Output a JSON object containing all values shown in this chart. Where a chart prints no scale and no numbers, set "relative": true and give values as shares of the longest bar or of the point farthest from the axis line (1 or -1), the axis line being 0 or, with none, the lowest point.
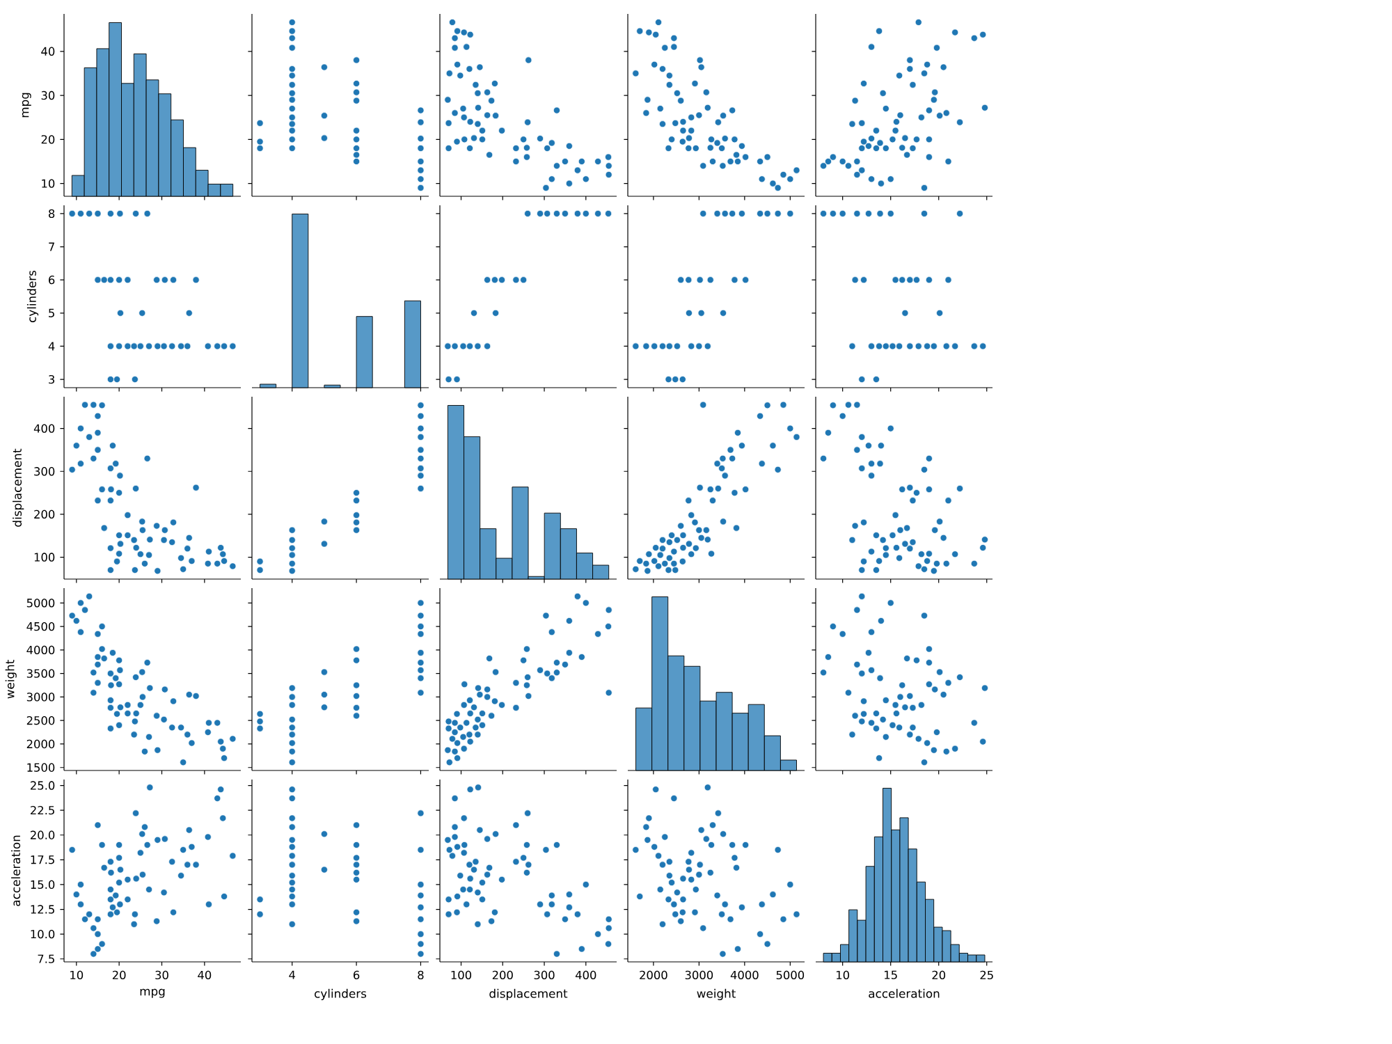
{
  "chart_data": [
    {
      "type": "bar",
      "relative": true,
      "color": "#5799c7",
      "x": [
        10.4,
        13.3,
        16.2,
        19.1,
        22,
        24.9,
        27.8,
        30.7,
        33.6,
        36.5,
        39.4,
        42.3,
        45.2
      ],
      "values": [
        0.12,
        0.74,
        0.85,
        1,
        0.65,
        0.82,
        0.67,
        0.59,
        0.44,
        0.28,
        0.15,
        0.07,
        0.07
      ],
      "xlim": [
        7.1,
        48.5
      ],
      "xticks": [
        10,
        20,
        30,
        40
      ],
      "y2label": "mpg",
      "y2lim": [
        7.1,
        48.5
      ],
      "y2ticks": [
        10,
        20,
        30,
        40
      ],
      "tick_labels": "y"
    },
    {
      "type": "scatter",
      "color": "#1f77b4",
      "marker": "circle",
      "x": [
        8,
        8,
        8,
        8,
        8,
        8,
        8,
        8,
        6,
        6,
        6,
        6,
        6,
        6,
        6,
        6,
        6,
        5,
        5,
        5,
        3,
        3,
        3,
        4,
        4,
        4,
        4,
        4,
        4,
        4,
        4,
        4,
        4,
        4,
        4,
        4,
        4,
        4
      ],
      "values": [
        18,
        15,
        9,
        11,
        13,
        23.9,
        26.6,
        20.2,
        22,
        18,
        38,
        20,
        15,
        30.7,
        28.8,
        32.7,
        16.5,
        20.3,
        25.4,
        36.4,
        18,
        19.5,
        23.7,
        27,
        25,
        46.6,
        43,
        44.6,
        32.4,
        34.5,
        40.8,
        29,
        20,
        30.5,
        36,
        22,
        18,
        23.5
      ],
      "xlim": [
        2.75,
        8.25
      ],
      "xticks": [
        4,
        6,
        8
      ],
      "ylim": [
        7.1,
        48.5
      ],
      "yticks": [
        10,
        20,
        30,
        40
      ],
      "tick_labels": false
    },
    {
      "type": "scatter",
      "color": "#1f77b4",
      "marker": "circle",
      "x": [
        307,
        350,
        429,
        454,
        390,
        330,
        455,
        360,
        304,
        400,
        455,
        380,
        260,
        330,
        318,
        360,
        290,
        318,
        198,
        232,
        262,
        250,
        232,
        163,
        173,
        181,
        168,
        258,
        258,
        131,
        183,
        145,
        70,
        90,
        70,
        122,
        105,
        85,
        107,
        79,
        107,
        122,
        85,
        91,
        141,
        72,
        135,
        98,
        91,
        85,
        68,
        151,
        163,
        140,
        108,
        120,
        151,
        113,
        121,
        140
      ],
      "values": [
        18,
        15,
        15,
        16,
        15,
        14,
        14,
        10,
        9,
        11,
        12,
        13,
        23.9,
        26.6,
        19.2,
        18.5,
        20.2,
        11,
        22,
        18,
        38,
        20,
        15,
        30.7,
        28.8,
        32.7,
        16.5,
        18.1,
        16,
        20.3,
        25.4,
        36.4,
        18,
        19.5,
        23.7,
        24,
        27,
        26,
        25,
        46.6,
        44.3,
        43.8,
        43,
        44.6,
        27.2,
        35,
        32.4,
        34.5,
        37,
        40.8,
        29,
        20,
        25.5,
        30.5,
        20,
        36,
        22,
        41,
        18,
        23.5
      ],
      "xlim": [
        49,
        474
      ],
      "xticks": [
        100,
        200,
        300,
        400
      ],
      "ylim": [
        7.1,
        48.5
      ],
      "yticks": [
        10,
        20,
        30,
        40
      ],
      "tick_labels": false
    },
    {
      "type": "scatter",
      "color": "#1f77b4",
      "marker": "circle",
      "x": [
        3500,
        3690,
        4340,
        4500,
        3850,
        3520,
        3090,
        4620,
        4730,
        5000,
        4850,
        5140,
        3420,
        3730,
        3400,
        3940,
        3570,
        4380,
        2830,
        2770,
        3020,
        3780,
        3300,
        3160,
        2600,
        2910,
        3820,
        3250,
        4020,
        2780,
        3530,
        3050,
        2330,
        2640,
        2480,
        2650,
        2150,
        1840,
        2830,
        2110,
        1900,
        2050,
        2450,
        1700,
        3190,
        1610,
        2350,
        2350,
        2020,
        2250,
        1870,
        2400,
        3000,
        2520,
        3270,
        2200,
        2650,
        2450,
        2930,
        2200
      ],
      "values": [
        18,
        15,
        15,
        16,
        15,
        14,
        14,
        10,
        9,
        11,
        12,
        13,
        23.9,
        26.6,
        19.2,
        18.5,
        20.2,
        11,
        22,
        18,
        38,
        20,
        15,
        30.7,
        28.8,
        32.7,
        16.5,
        18.1,
        16,
        20.3,
        25.4,
        36.4,
        18,
        19.5,
        23.7,
        24,
        27,
        26,
        25,
        46.6,
        44.3,
        43.8,
        43,
        44.6,
        27.2,
        35,
        32.4,
        34.5,
        37,
        40.8,
        29,
        20,
        25.5,
        30.5,
        20,
        36,
        22,
        41,
        18,
        23.5
      ],
      "xlim": [
        1437,
        5316
      ],
      "xticks": [
        2000,
        3000,
        4000,
        5000
      ],
      "ylim": [
        7.1,
        48.5
      ],
      "yticks": [
        10,
        20,
        30,
        40
      ],
      "tick_labels": false
    },
    {
      "type": "scatter",
      "color": "#1f77b4",
      "marker": "circle",
      "x": [
        12,
        11.5,
        10,
        9,
        8.5,
        8,
        10.6,
        14,
        18.5,
        15,
        11.5,
        12,
        22.2,
        19,
        13.9,
        12.7,
        13,
        13,
        15.5,
        17.3,
        17,
        17.7,
        21,
        19.6,
        11.3,
        12.2,
        16.7,
        16.2,
        19,
        16.5,
        20.1,
        20.5,
        13.5,
        12.2,
        12,
        15.6,
        14.5,
        20.8,
        18.2,
        17.9,
        21.7,
        24.6,
        23.7,
        13.8,
        24.8,
        18.5,
        17.3,
        15.9,
        18.8,
        19.8,
        19.5,
        15.2,
        16,
        14.2,
        19,
        17,
        13.5,
        13,
        14.5,
        11
      ],
      "values": [
        18,
        15,
        15,
        16,
        15,
        14,
        14,
        10,
        9,
        11,
        12,
        13,
        23.9,
        26.6,
        19.2,
        18.5,
        20.2,
        11,
        22,
        18,
        38,
        20,
        15,
        30.7,
        28.8,
        32.7,
        16.5,
        18.1,
        16,
        20.3,
        25.4,
        36.4,
        18,
        19.5,
        23.7,
        24,
        27,
        26,
        25,
        46.6,
        44.3,
        43.8,
        43,
        44.6,
        27.2,
        35,
        32.4,
        34.5,
        37,
        40.8,
        29,
        20,
        25.5,
        30.5,
        20,
        36,
        22,
        41,
        18,
        23.5
      ],
      "xlim": [
        7.2,
        25.6
      ],
      "xticks": [
        10,
        15,
        20,
        25
      ],
      "ylim": [
        7.1,
        48.5
      ],
      "yticks": [
        10,
        20,
        30,
        40
      ],
      "tick_labels": false
    },
    {
      "type": "scatter",
      "color": "#1f77b4",
      "marker": "circle",
      "ylabel": "cylinders",
      "x": [
        18,
        15,
        9,
        11,
        13,
        23.9,
        26.6,
        20.2,
        22,
        18,
        38,
        20,
        15,
        30.7,
        28.8,
        32.7,
        16.5,
        20.3,
        25.4,
        36.4,
        18,
        19.5,
        23.7,
        27,
        25,
        46.6,
        43,
        44.6,
        32.4,
        34.5,
        40.8,
        29,
        20,
        30.5,
        36,
        22,
        18,
        23.5
      ],
      "values": [
        8,
        8,
        8,
        8,
        8,
        8,
        8,
        8,
        6,
        6,
        6,
        6,
        6,
        6,
        6,
        6,
        6,
        5,
        5,
        5,
        3,
        3,
        3,
        4,
        4,
        4,
        4,
        4,
        4,
        4,
        4,
        4,
        4,
        4,
        4,
        4,
        4,
        4
      ],
      "xlim": [
        7.1,
        48.5
      ],
      "xticks": [
        10,
        20,
        30,
        40
      ],
      "ylim": [
        2.75,
        8.25
      ],
      "yticks": [
        3,
        4,
        5,
        6,
        7,
        8
      ],
      "tick_labels": "y"
    },
    {
      "type": "bar",
      "relative": true,
      "color": "#5799c7",
      "x": [
        3.25,
        3.75,
        4.25,
        4.75,
        5.25,
        5.75,
        6.25,
        6.75,
        7.25,
        7.75
      ],
      "values": [
        0.02,
        0,
        1,
        0,
        0.015,
        0,
        0.41,
        0,
        0,
        0.5
      ],
      "xlim": [
        2.75,
        8.25
      ],
      "xticks": [
        4,
        6,
        8
      ],
      "tick_labels": false
    },
    {
      "type": "scatter",
      "color": "#1f77b4",
      "marker": "circle",
      "x": [
        307,
        350,
        429,
        454,
        330,
        400,
        380,
        260,
        290,
        198,
        232,
        250,
        163,
        181,
        131,
        183,
        70,
        90,
        105,
        85,
        68,
        163,
        140,
        121
      ],
      "values": [
        8,
        8,
        8,
        8,
        8,
        8,
        8,
        8,
        8,
        6,
        6,
        6,
        6,
        6,
        5,
        5,
        3,
        3,
        4,
        4,
        4,
        4,
        4,
        4
      ],
      "xlim": [
        49,
        474
      ],
      "xticks": [
        100,
        200,
        300,
        400
      ],
      "ylim": [
        2.75,
        8.25
      ],
      "yticks": [
        3,
        4,
        5,
        6,
        7,
        8
      ],
      "tick_labels": false
    },
    {
      "type": "scatter",
      "color": "#1f77b4",
      "marker": "circle",
      "x": [
        4340,
        4500,
        3090,
        4730,
        5000,
        3730,
        3400,
        3940,
        3570,
        2770,
        3020,
        3780,
        2600,
        3250,
        4020,
        2780,
        3530,
        3050,
        2330,
        2640,
        2480,
        1840,
        2830,
        3190,
        1610,
        2350,
        2020,
        3000,
        2520,
        2200
      ],
      "values": [
        8,
        8,
        8,
        8,
        8,
        8,
        8,
        8,
        8,
        6,
        6,
        6,
        6,
        6,
        6,
        5,
        5,
        5,
        3,
        3,
        3,
        4,
        4,
        4,
        4,
        4,
        4,
        4,
        4,
        4
      ],
      "xlim": [
        1437,
        5316
      ],
      "xticks": [
        2000,
        3000,
        4000,
        5000
      ],
      "ylim": [
        2.75,
        8.25
      ],
      "yticks": [
        3,
        4,
        5,
        6,
        7,
        8
      ],
      "tick_labels": false
    },
    {
      "type": "scatter",
      "color": "#1f77b4",
      "marker": "circle",
      "x": [
        11.5,
        10,
        9,
        8,
        18.5,
        15,
        22.2,
        13.9,
        12.7,
        15.5,
        17,
        17.7,
        21,
        11.3,
        12.2,
        16.2,
        19,
        16.5,
        20.1,
        13.5,
        12,
        14.5,
        20.8,
        17.9,
        21.7,
        24.6,
        23.7,
        13.8,
        15.9,
        18.8,
        19.5,
        15.2,
        17,
        13,
        11
      ],
      "values": [
        8,
        8,
        8,
        8,
        8,
        8,
        8,
        8,
        8,
        6,
        6,
        6,
        6,
        6,
        6,
        6,
        6,
        5,
        5,
        3,
        3,
        4,
        4,
        4,
        4,
        4,
        4,
        4,
        4,
        4,
        4,
        4,
        4,
        4,
        4
      ],
      "xlim": [
        7.2,
        25.6
      ],
      "xticks": [
        10,
        15,
        20,
        25
      ],
      "ylim": [
        2.75,
        8.25
      ],
      "yticks": [
        3,
        4,
        5,
        6,
        7,
        8
      ],
      "tick_labels": false
    },
    {
      "type": "scatter",
      "color": "#1f77b4",
      "marker": "circle",
      "ylabel": "displacement",
      "x": [
        18,
        15,
        15,
        16,
        15,
        14,
        14,
        10,
        9,
        11,
        12,
        13,
        23.9,
        26.6,
        19.2,
        18.5,
        20.2,
        11,
        22,
        18,
        38,
        20,
        15,
        30.7,
        28.8,
        32.7,
        16.5,
        18.1,
        16,
        20.3,
        25.4,
        36.4,
        18,
        19.5,
        23.7,
        24,
        27,
        26,
        25,
        46.6,
        44.3,
        43.8,
        43,
        44.6,
        27.2,
        35,
        32.4,
        34.5,
        37,
        40.8,
        29,
        20,
        25.5,
        30.5,
        20,
        36,
        22,
        41,
        18,
        23.5
      ],
      "values": [
        307,
        350,
        429,
        454,
        390,
        330,
        455,
        360,
        304,
        400,
        455,
        380,
        260,
        330,
        318,
        360,
        290,
        318,
        198,
        232,
        262,
        250,
        232,
        163,
        173,
        181,
        168,
        258,
        258,
        131,
        183,
        145,
        70,
        90,
        70,
        122,
        105,
        85,
        107,
        79,
        107,
        122,
        85,
        91,
        141,
        72,
        135,
        98,
        91,
        85,
        68,
        151,
        163,
        140,
        108,
        120,
        151,
        113,
        121,
        140
      ],
      "xlim": [
        7.1,
        48.5
      ],
      "xticks": [
        10,
        20,
        30,
        40
      ],
      "ylim": [
        49,
        474
      ],
      "yticks": [
        100,
        200,
        300,
        400
      ],
      "tick_labels": "y"
    },
    {
      "type": "scatter",
      "color": "#1f77b4",
      "marker": "circle",
      "x": [
        8,
        8,
        8,
        8,
        8,
        8,
        8,
        8,
        8,
        6,
        6,
        6,
        6,
        6,
        5,
        5,
        3,
        3,
        4,
        4,
        4,
        4,
        4,
        4
      ],
      "values": [
        307,
        350,
        429,
        454,
        330,
        400,
        380,
        260,
        290,
        198,
        232,
        250,
        163,
        181,
        131,
        183,
        70,
        90,
        105,
        85,
        68,
        163,
        140,
        121
      ],
      "xlim": [
        2.75,
        8.25
      ],
      "xticks": [
        4,
        6,
        8
      ],
      "ylim": [
        49,
        474
      ],
      "yticks": [
        100,
        200,
        300,
        400
      ],
      "tick_labels": false
    },
    {
      "type": "bar",
      "relative": true,
      "color": "#5799c7",
      "x": [
        87.4,
        126.1,
        164.8,
        203.5,
        242.2,
        280.9,
        319.6,
        358.3,
        397,
        435.7
      ],
      "values": [
        1,
        0.82,
        0.29,
        0.12,
        0.53,
        0.015,
        0.38,
        0.29,
        0.15,
        0.08
      ],
      "xlim": [
        49,
        474
      ],
      "xticks": [
        100,
        200,
        300,
        400
      ],
      "tick_labels": false
    },
    {
      "type": "scatter",
      "color": "#1f77b4",
      "marker": "circle",
      "x": [
        3500,
        3690,
        4340,
        4500,
        3850,
        3520,
        3090,
        4620,
        4730,
        5000,
        4850,
        5140,
        3420,
        3730,
        3400,
        3940,
        3570,
        4380,
        2830,
        2770,
        3020,
        3780,
        3300,
        3160,
        2600,
        2910,
        3820,
        3250,
        4020,
        2780,
        3530,
        3050,
        2330,
        2640,
        2480,
        2650,
        2150,
        1840,
        2830,
        2110,
        1900,
        2050,
        2450,
        1700,
        3190,
        1610,
        2350,
        2350,
        2020,
        2250,
        1870,
        2400,
        3000,
        2520,
        3270,
        2200,
        2650,
        2450,
        2930,
        2200
      ],
      "values": [
        307,
        350,
        429,
        454,
        390,
        330,
        455,
        360,
        304,
        400,
        455,
        380,
        260,
        330,
        318,
        360,
        290,
        318,
        198,
        232,
        262,
        250,
        232,
        163,
        173,
        181,
        168,
        258,
        258,
        131,
        183,
        145,
        70,
        90,
        70,
        122,
        105,
        85,
        107,
        79,
        107,
        122,
        85,
        91,
        141,
        72,
        135,
        98,
        91,
        85,
        68,
        151,
        163,
        140,
        108,
        120,
        151,
        113,
        121,
        140
      ],
      "xlim": [
        1437,
        5316
      ],
      "xticks": [
        2000,
        3000,
        4000,
        5000
      ],
      "ylim": [
        49,
        474
      ],
      "yticks": [
        100,
        200,
        300,
        400
      ],
      "tick_labels": false
    },
    {
      "type": "scatter",
      "color": "#1f77b4",
      "marker": "circle",
      "x": [
        12,
        11.5,
        10,
        9,
        8.5,
        8,
        10.6,
        14,
        18.5,
        15,
        11.5,
        12,
        22.2,
        19,
        13.9,
        12.7,
        13,
        13,
        15.5,
        17.3,
        17,
        17.7,
        21,
        19.6,
        11.3,
        12.2,
        16.7,
        16.2,
        19,
        16.5,
        20.1,
        20.5,
        13.5,
        12.2,
        12,
        15.6,
        14.5,
        20.8,
        18.2,
        17.9,
        21.7,
        24.6,
        23.7,
        13.8,
        24.8,
        18.5,
        17.3,
        15.9,
        18.8,
        19.8,
        19.5,
        15.2,
        16,
        14.2,
        19,
        17,
        13.5,
        13,
        14.5,
        11
      ],
      "values": [
        307,
        350,
        429,
        454,
        390,
        330,
        455,
        360,
        304,
        400,
        455,
        380,
        260,
        330,
        318,
        360,
        290,
        318,
        198,
        232,
        262,
        250,
        232,
        163,
        173,
        181,
        168,
        258,
        258,
        131,
        183,
        145,
        70,
        90,
        70,
        122,
        105,
        85,
        107,
        79,
        107,
        122,
        85,
        91,
        141,
        72,
        135,
        98,
        91,
        85,
        68,
        151,
        163,
        140,
        108,
        120,
        151,
        113,
        121,
        140
      ],
      "xlim": [
        7.2,
        25.6
      ],
      "xticks": [
        10,
        15,
        20,
        25
      ],
      "ylim": [
        49,
        474
      ],
      "yticks": [
        100,
        200,
        300,
        400
      ],
      "tick_labels": false
    },
    {
      "type": "scatter",
      "color": "#1f77b4",
      "marker": "circle",
      "ylabel": "weight",
      "x": [
        18,
        15,
        15,
        16,
        15,
        14,
        14,
        10,
        9,
        11,
        12,
        13,
        23.9,
        26.6,
        19.2,
        18.5,
        20.2,
        11,
        22,
        18,
        38,
        20,
        15,
        30.7,
        28.8,
        32.7,
        16.5,
        18.1,
        16,
        20.3,
        25.4,
        36.4,
        18,
        19.5,
        23.7,
        24,
        27,
        26,
        25,
        46.6,
        44.3,
        43.8,
        43,
        44.6,
        27.2,
        35,
        32.4,
        34.5,
        37,
        40.8,
        29,
        20,
        25.5,
        30.5,
        20,
        36,
        22,
        41,
        18,
        23.5
      ],
      "values": [
        3500,
        3690,
        4340,
        4500,
        3850,
        3520,
        3090,
        4620,
        4730,
        5000,
        4850,
        5140,
        3420,
        3730,
        3400,
        3940,
        3570,
        4380,
        2830,
        2770,
        3020,
        3780,
        3300,
        3160,
        2600,
        2910,
        3820,
        3250,
        4020,
        2780,
        3530,
        3050,
        2330,
        2640,
        2480,
        2650,
        2150,
        1840,
        2830,
        2110,
        1900,
        2050,
        2450,
        1700,
        3190,
        1610,
        2350,
        2350,
        2020,
        2250,
        1870,
        2400,
        3000,
        2520,
        3270,
        2200,
        2650,
        2450,
        2930,
        2200
      ],
      "xlim": [
        7.1,
        48.5
      ],
      "xticks": [
        10,
        20,
        30,
        40
      ],
      "ylim": [
        1437,
        5316
      ],
      "yticks": [
        1500,
        2000,
        2500,
        3000,
        3500,
        4000,
        4500,
        5000
      ],
      "tick_labels": "y"
    },
    {
      "type": "scatter",
      "color": "#1f77b4",
      "marker": "circle",
      "x": [
        8,
        8,
        8,
        8,
        8,
        8,
        8,
        8,
        8,
        6,
        6,
        6,
        6,
        6,
        6,
        5,
        5,
        5,
        3,
        3,
        3,
        4,
        4,
        4,
        4,
        4,
        4,
        4,
        4,
        4
      ],
      "values": [
        4340,
        4500,
        3090,
        4730,
        5000,
        3730,
        3400,
        3940,
        3570,
        2770,
        3020,
        3780,
        2600,
        3250,
        4020,
        2780,
        3530,
        3050,
        2330,
        2640,
        2480,
        1840,
        2830,
        3190,
        1610,
        2350,
        2020,
        3000,
        2520,
        2200
      ],
      "xlim": [
        2.75,
        8.25
      ],
      "xticks": [
        4,
        6,
        8
      ],
      "ylim": [
        1437,
        5316
      ],
      "yticks": [
        1500,
        2000,
        2500,
        3000,
        3500,
        4000,
        4500,
        5000
      ],
      "tick_labels": false
    },
    {
      "type": "scatter",
      "color": "#1f77b4",
      "marker": "circle",
      "x": [
        307,
        350,
        429,
        454,
        390,
        330,
        455,
        360,
        304,
        400,
        455,
        380,
        260,
        330,
        318,
        360,
        290,
        318,
        198,
        232,
        262,
        250,
        232,
        163,
        173,
        181,
        168,
        258,
        258,
        131,
        183,
        145,
        70,
        90,
        70,
        122,
        105,
        85,
        107,
        79,
        107,
        122,
        85,
        91,
        141,
        72,
        135,
        98,
        91,
        85,
        68,
        151,
        163,
        140,
        108,
        120,
        151,
        113,
        121,
        140
      ],
      "values": [
        3500,
        3690,
        4340,
        4500,
        3850,
        3520,
        3090,
        4620,
        4730,
        5000,
        4850,
        5140,
        3420,
        3730,
        3400,
        3940,
        3570,
        4380,
        2830,
        2770,
        3020,
        3780,
        3300,
        3160,
        2600,
        2910,
        3820,
        3250,
        4020,
        2780,
        3530,
        3050,
        2330,
        2640,
        2480,
        2650,
        2150,
        1840,
        2830,
        2110,
        1900,
        2050,
        2450,
        1700,
        3190,
        1610,
        2350,
        2350,
        2020,
        2250,
        1870,
        2400,
        3000,
        2520,
        3270,
        2200,
        2650,
        2450,
        2930,
        2200
      ],
      "xlim": [
        49,
        474
      ],
      "xticks": [
        100,
        200,
        300,
        400
      ],
      "ylim": [
        1437,
        5316
      ],
      "yticks": [
        1500,
        2000,
        2500,
        3000,
        3500,
        4000,
        4500,
        5000
      ],
      "tick_labels": false
    },
    {
      "type": "bar",
      "relative": true,
      "color": "#5799c7",
      "x": [
        1789,
        2142,
        2495,
        2847,
        3200,
        3553,
        3906,
        4258,
        4611,
        4964
      ],
      "values": [
        0.36,
        1,
        0.66,
        0.6,
        0.4,
        0.45,
        0.33,
        0.38,
        0.2,
        0.06
      ],
      "xlim": [
        1437,
        5316
      ],
      "xticks": [
        2000,
        3000,
        4000,
        5000
      ],
      "tick_labels": false
    },
    {
      "type": "scatter",
      "color": "#1f77b4",
      "marker": "circle",
      "x": [
        12,
        11.5,
        10,
        9,
        8.5,
        8,
        10.6,
        14,
        18.5,
        15,
        11.5,
        12,
        22.2,
        19,
        13.9,
        12.7,
        13,
        13,
        15.5,
        17.3,
        17,
        17.7,
        21,
        19.6,
        11.3,
        12.2,
        16.7,
        16.2,
        19,
        16.5,
        20.1,
        20.5,
        13.5,
        12.2,
        12,
        15.6,
        14.5,
        20.8,
        18.2,
        17.9,
        21.7,
        24.6,
        23.7,
        13.8,
        24.8,
        18.5,
        17.3,
        15.9,
        18.8,
        19.8,
        19.5,
        15.2,
        16,
        14.2,
        19,
        17,
        13.5,
        13,
        14.5,
        11
      ],
      "values": [
        3500,
        3690,
        4340,
        4500,
        3850,
        3520,
        3090,
        4620,
        4730,
        5000,
        4850,
        5140,
        3420,
        3730,
        3400,
        3940,
        3570,
        4380,
        2830,
        2770,
        3020,
        3780,
        3300,
        3160,
        2600,
        2910,
        3820,
        3250,
        4020,
        2780,
        3530,
        3050,
        2330,
        2640,
        2480,
        2650,
        2150,
        1840,
        2830,
        2110,
        1900,
        2050,
        2450,
        1700,
        3190,
        1610,
        2350,
        2350,
        2020,
        2250,
        1870,
        2400,
        3000,
        2520,
        3270,
        2200,
        2650,
        2450,
        2930,
        2200
      ],
      "xlim": [
        7.2,
        25.6
      ],
      "xticks": [
        10,
        15,
        20,
        25
      ],
      "ylim": [
        1437,
        5316
      ],
      "yticks": [
        1500,
        2000,
        2500,
        3000,
        3500,
        4000,
        4500,
        5000
      ],
      "tick_labels": false
    },
    {
      "type": "scatter",
      "color": "#1f77b4",
      "marker": "circle",
      "xlabel": "mpg",
      "ylabel": "acceleration",
      "x": [
        18,
        15,
        15,
        16,
        15,
        14,
        14,
        10,
        9,
        11,
        12,
        13,
        23.9,
        26.6,
        19.2,
        18.5,
        20.2,
        11,
        22,
        18,
        38,
        20,
        15,
        30.7,
        28.8,
        32.7,
        16.5,
        18.1,
        16,
        20.3,
        25.4,
        36.4,
        18,
        19.5,
        23.7,
        24,
        27,
        26,
        25,
        46.6,
        44.3,
        43.8,
        43,
        44.6,
        27.2,
        35,
        32.4,
        34.5,
        37,
        40.8,
        29,
        20,
        25.5,
        30.5,
        20,
        36,
        22,
        41,
        18,
        23.5
      ],
      "values": [
        12,
        11.5,
        10,
        9,
        8.5,
        8,
        10.6,
        14,
        18.5,
        15,
        11.5,
        12,
        22.2,
        19,
        13.9,
        12.7,
        13,
        13,
        15.5,
        17.3,
        17,
        17.7,
        21,
        19.6,
        11.3,
        12.2,
        16.7,
        16.2,
        19,
        16.5,
        20.1,
        20.5,
        13.5,
        12.2,
        12,
        15.6,
        14.5,
        20.8,
        18.2,
        17.9,
        21.7,
        24.6,
        23.7,
        13.8,
        24.8,
        18.5,
        17.3,
        15.9,
        18.8,
        19.8,
        19.5,
        15.2,
        16,
        14.2,
        19,
        17,
        13.5,
        13,
        14.5,
        11
      ],
      "xlim": [
        7.1,
        48.5
      ],
      "xticks": [
        10,
        20,
        30,
        40
      ],
      "ylim": [
        7.2,
        25.6
      ],
      "yticks": [
        7.5,
        {
          "value": 10,
          "label": "10.0"
        },
        12.5,
        {
          "value": 15,
          "label": "15.0"
        },
        17.5,
        {
          "value": 20,
          "label": "20.0"
        },
        22.5,
        {
          "value": 25,
          "label": "25.0"
        }
      ]
    },
    {
      "type": "scatter",
      "color": "#1f77b4",
      "marker": "circle",
      "xlabel": "cylinders",
      "x": [
        8,
        8,
        8,
        8,
        8,
        8,
        8,
        8,
        8,
        6,
        6,
        6,
        6,
        6,
        6,
        6,
        6,
        5,
        5,
        3,
        3,
        4,
        4,
        4,
        4,
        4,
        4,
        4,
        4,
        4,
        4,
        4,
        4,
        4,
        4
      ],
      "values": [
        11.5,
        10,
        9,
        8,
        18.5,
        15,
        22.2,
        13.9,
        12.7,
        15.5,
        17,
        17.7,
        21,
        11.3,
        12.2,
        16.2,
        19,
        16.5,
        20.1,
        13.5,
        12,
        14.5,
        20.8,
        17.9,
        21.7,
        24.6,
        23.7,
        13.8,
        15.9,
        18.8,
        19.5,
        15.2,
        17,
        13,
        11
      ],
      "xlim": [
        2.75,
        8.25
      ],
      "xticks": [
        4,
        6,
        8
      ],
      "ylim": [
        7.2,
        25.6
      ],
      "yticks": [
        7.5,
        10,
        12.5,
        15,
        17.5,
        20,
        22.5,
        25
      ],
      "tick_labels": "x"
    },
    {
      "type": "scatter",
      "color": "#1f77b4",
      "marker": "circle",
      "xlabel": "displacement",
      "x": [
        307,
        350,
        429,
        454,
        390,
        330,
        455,
        360,
        304,
        400,
        455,
        380,
        260,
        330,
        318,
        360,
        290,
        318,
        198,
        232,
        262,
        250,
        232,
        163,
        173,
        181,
        168,
        258,
        258,
        131,
        183,
        145,
        70,
        90,
        70,
        122,
        105,
        85,
        107,
        79,
        107,
        122,
        85,
        91,
        141,
        72,
        135,
        98,
        91,
        85,
        68,
        151,
        163,
        140,
        108,
        120,
        151,
        113,
        121,
        140
      ],
      "values": [
        12,
        11.5,
        10,
        9,
        8.5,
        8,
        10.6,
        14,
        18.5,
        15,
        11.5,
        12,
        22.2,
        19,
        13.9,
        12.7,
        13,
        13,
        15.5,
        17.3,
        17,
        17.7,
        21,
        19.6,
        11.3,
        12.2,
        16.7,
        16.2,
        19,
        16.5,
        20.1,
        20.5,
        13.5,
        12.2,
        12,
        15.6,
        14.5,
        20.8,
        18.2,
        17.9,
        21.7,
        24.6,
        23.7,
        13.8,
        24.8,
        18.5,
        17.3,
        15.9,
        18.8,
        19.8,
        19.5,
        15.2,
        16,
        14.2,
        19,
        17,
        13.5,
        13,
        14.5,
        11
      ],
      "xlim": [
        49,
        474
      ],
      "xticks": [
        100,
        200,
        300,
        400
      ],
      "ylim": [
        7.2,
        25.6
      ],
      "yticks": [
        7.5,
        10,
        12.5,
        15,
        17.5,
        20,
        22.5,
        25
      ],
      "tick_labels": "x"
    },
    {
      "type": "scatter",
      "color": "#1f77b4",
      "marker": "circle",
      "xlabel": "weight",
      "x": [
        3500,
        3690,
        4340,
        4500,
        3850,
        3520,
        3090,
        4620,
        4730,
        5000,
        4850,
        5140,
        3420,
        3730,
        3400,
        3940,
        3570,
        4380,
        2830,
        2770,
        3020,
        3780,
        3300,
        3160,
        2600,
        2910,
        3820,
        3250,
        4020,
        2780,
        3530,
        3050,
        2330,
        2640,
        2480,
        2650,
        2150,
        1840,
        2830,
        2110,
        1900,
        2050,
        2450,
        1700,
        3190,
        1610,
        2350,
        2350,
        2020,
        2250,
        1870,
        2400,
        3000,
        2520,
        3270,
        2200,
        2650,
        2450,
        2930,
        2200
      ],
      "values": [
        12,
        11.5,
        10,
        9,
        8.5,
        8,
        10.6,
        14,
        18.5,
        15,
        11.5,
        12,
        22.2,
        19,
        13.9,
        12.7,
        13,
        13,
        15.5,
        17.3,
        17,
        17.7,
        21,
        19.6,
        11.3,
        12.2,
        16.7,
        16.2,
        19,
        16.5,
        20.1,
        20.5,
        13.5,
        12.2,
        12,
        15.6,
        14.5,
        20.8,
        18.2,
        17.9,
        21.7,
        24.6,
        23.7,
        13.8,
        24.8,
        18.5,
        17.3,
        15.9,
        18.8,
        19.8,
        19.5,
        15.2,
        16,
        14.2,
        19,
        17,
        13.5,
        13,
        14.5,
        11
      ],
      "xlim": [
        1437,
        5316
      ],
      "xticks": [
        2000,
        3000,
        4000,
        5000
      ],
      "ylim": [
        7.2,
        25.6
      ],
      "yticks": [
        7.5,
        10,
        12.5,
        15,
        17.5,
        20,
        22.5,
        25
      ],
      "tick_labels": "x"
    },
    {
      "type": "bar",
      "relative": true,
      "color": "#5799c7",
      "xlabel": "acceleration",
      "x": [
        8.44,
        9.33,
        10.21,
        11.09,
        11.98,
        12.86,
        13.75,
        14.63,
        15.52,
        16.4,
        17.28,
        18.17,
        19.05,
        19.94,
        20.82,
        21.7,
        22.59,
        23.47,
        24.36
      ],
      "values": [
        0.05,
        0.05,
        0.1,
        0.3,
        0.24,
        0.55,
        0.72,
        1,
        0.76,
        0.83,
        0.65,
        0.46,
        0.36,
        0.2,
        0.18,
        0.1,
        0.05,
        0.04,
        0.04
      ],
      "xlim": [
        7.2,
        25.6
      ],
      "xticks": [
        10,
        15,
        20,
        25
      ],
      "tick_labels": "x"
    }
  ]
}
